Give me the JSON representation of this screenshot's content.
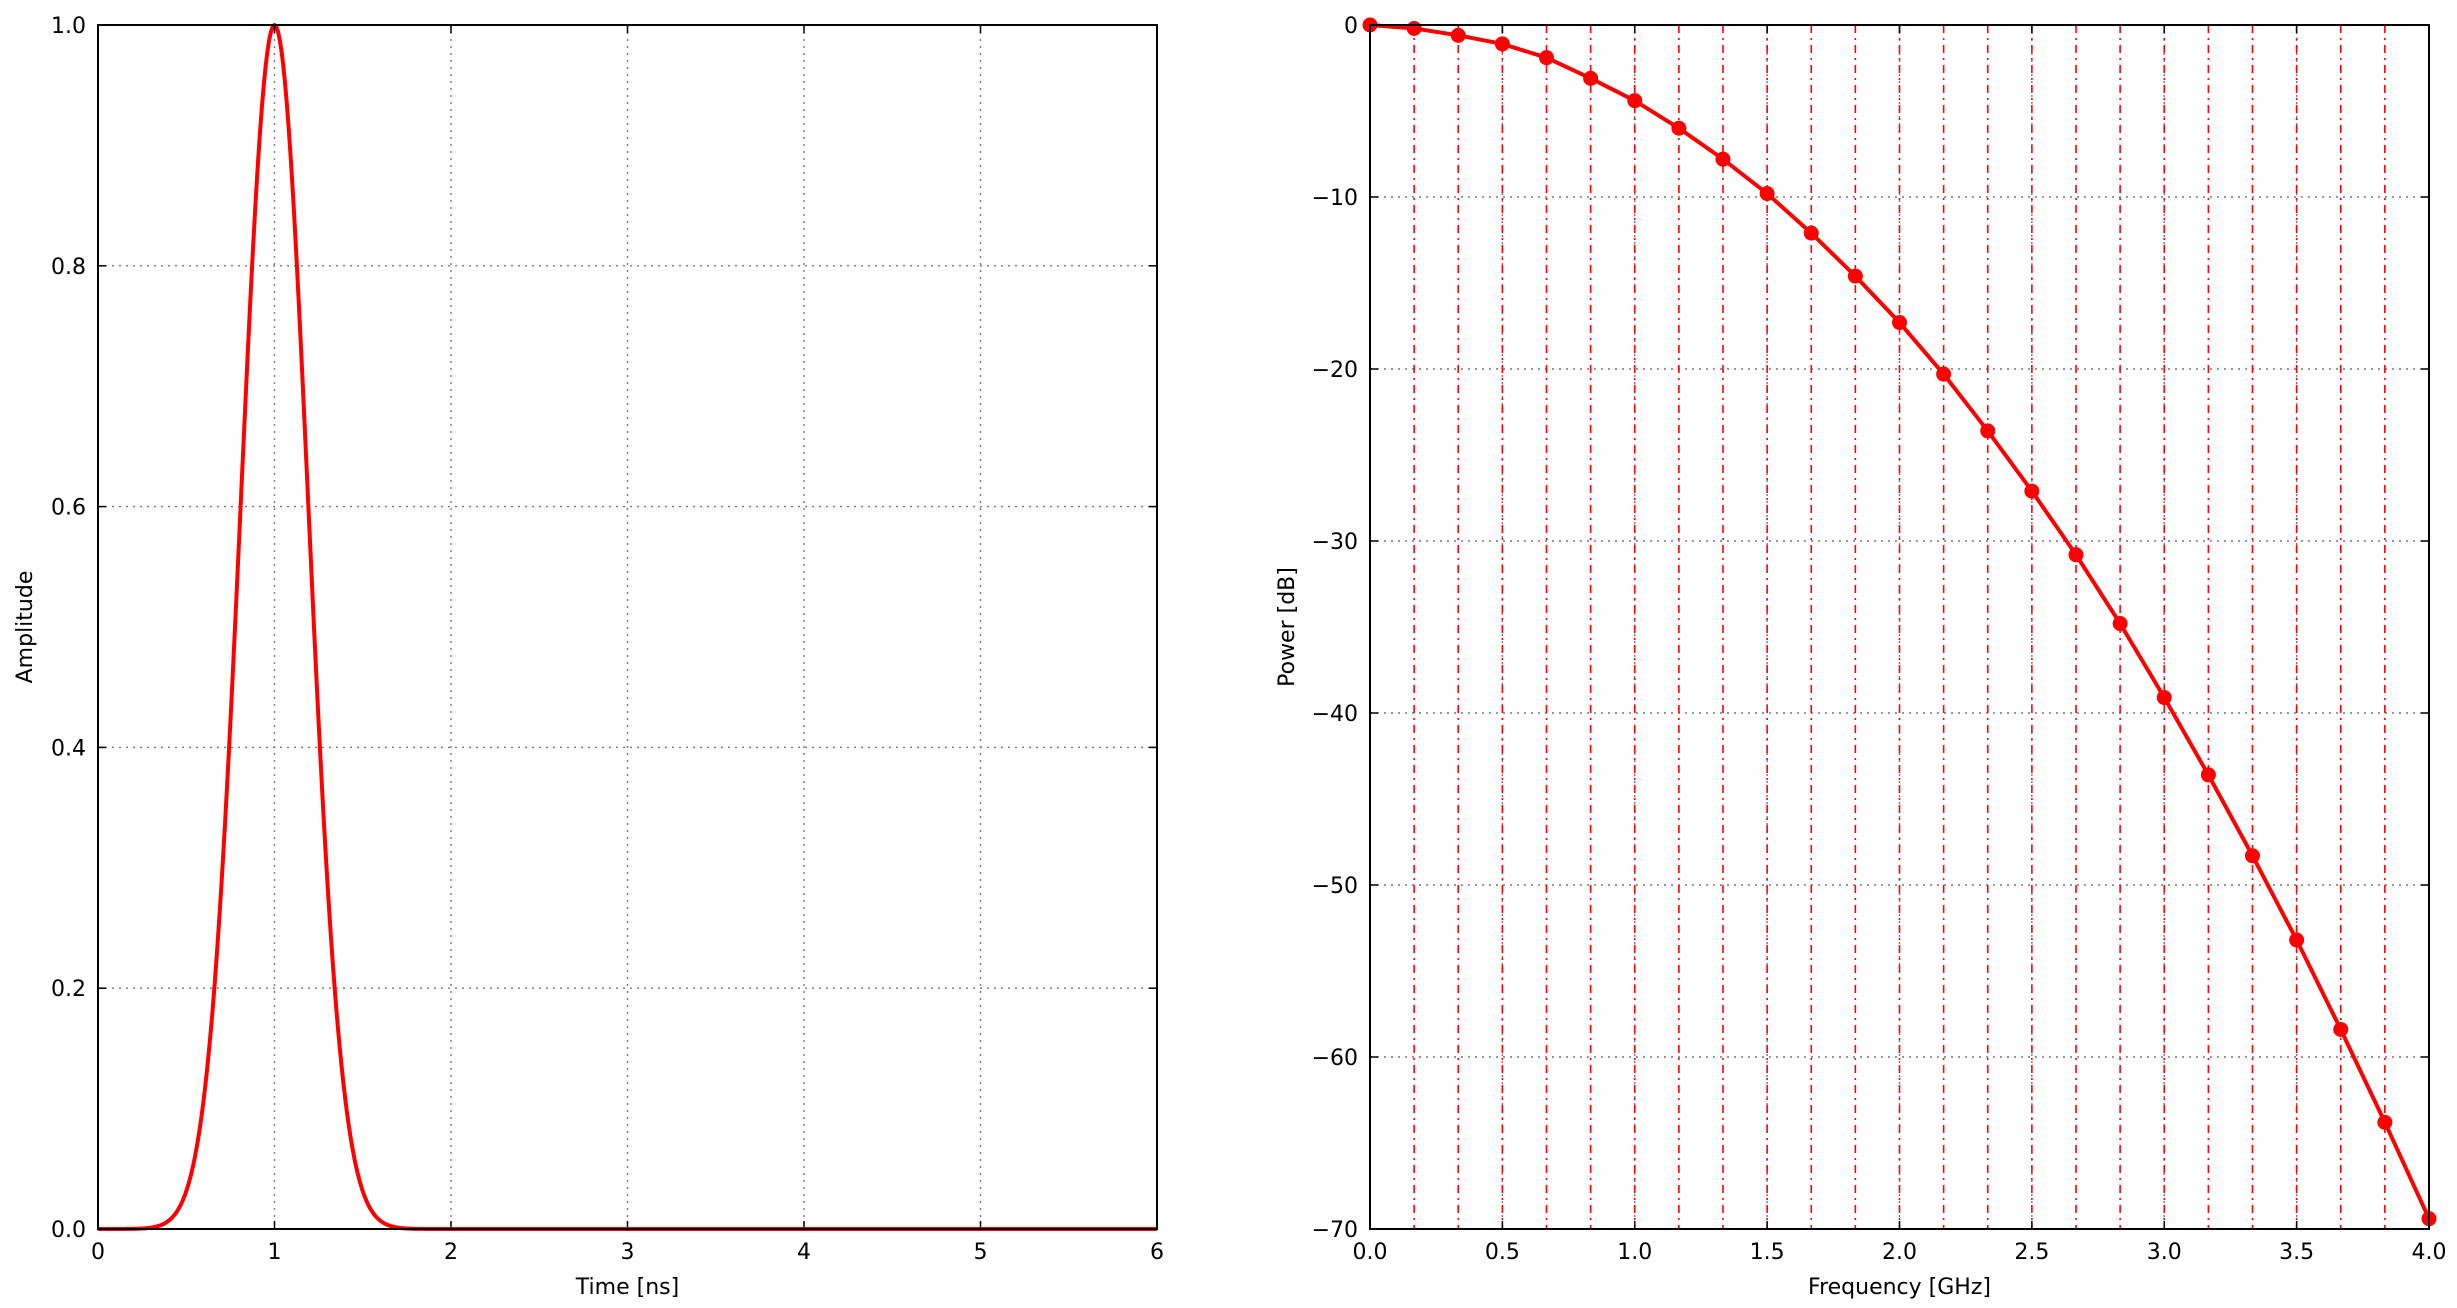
{
  "chart_data": [
    {
      "type": "line",
      "title": "",
      "xlabel": "Time [ns]",
      "ylabel": "Amplitude",
      "xlim": [
        0,
        6
      ],
      "ylim": [
        0,
        1
      ],
      "xticks": [
        "0",
        "1",
        "2",
        "3",
        "4",
        "5",
        "6"
      ],
      "yticks": [
        "0.0",
        "0.2",
        "0.4",
        "0.6",
        "0.8",
        "1.0"
      ],
      "grid": true,
      "series": [
        {
          "color": "#ff0000",
          "curve": "gaussian",
          "peak_time": 1.0,
          "peak_amplitude": 1.0,
          "sigma": 0.19,
          "x": [
            0,
            0.4,
            0.5,
            0.6,
            0.7,
            0.8,
            0.9,
            1.0,
            1.1,
            1.2,
            1.3,
            1.4,
            1.5,
            1.6,
            2,
            3,
            4,
            5,
            6
          ],
          "y": [
            0,
            0.007,
            0.031,
            0.108,
            0.288,
            0.575,
            0.871,
            1.0,
            0.871,
            0.575,
            0.288,
            0.108,
            0.031,
            0.007,
            0,
            0,
            0,
            0,
            0
          ]
        }
      ]
    },
    {
      "type": "line",
      "title": "",
      "xlabel": "Frequency [GHz]",
      "ylabel": "Power [dB]",
      "xlim": [
        0,
        4
      ],
      "ylim": [
        -70,
        0
      ],
      "xticks": [
        "0.0",
        "0.5",
        "1.0",
        "1.5",
        "2.0",
        "2.5",
        "3.0",
        "3.5",
        "4.0"
      ],
      "yticks": [
        "−70",
        "−60",
        "−50",
        "−40",
        "−30",
        "−20",
        "−10",
        "0"
      ],
      "grid": true,
      "series": [
        {
          "color": "#ff0000",
          "markers": true,
          "x": [
            0.0,
            0.1667,
            0.3333,
            0.5,
            0.6667,
            0.8333,
            1.0,
            1.1667,
            1.3333,
            1.5,
            1.6667,
            1.8333,
            2.0,
            2.1667,
            2.3333,
            2.5,
            2.6667,
            2.8333,
            3.0,
            3.1667,
            3.3333,
            3.5,
            3.6667,
            3.8333,
            4.0
          ],
          "y": [
            0,
            -0.2,
            -0.6,
            -1.1,
            -1.9,
            -3.1,
            -4.4,
            -6.0,
            -7.8,
            -9.8,
            -12.1,
            -14.6,
            -17.3,
            -20.3,
            -23.6,
            -27.1,
            -30.8,
            -34.8,
            -39.1,
            -43.6,
            -48.3,
            -53.2,
            -58.4,
            -63.8,
            -69.4
          ]
        }
      ],
      "vlines": {
        "color": "#ff0000",
        "style": "dashdot",
        "x": [
          0.0,
          0.1667,
          0.3333,
          0.5,
          0.6667,
          0.8333,
          1.0,
          1.1667,
          1.3333,
          1.5,
          1.6667,
          1.8333,
          2.0,
          2.1667,
          2.3333,
          2.5,
          2.6667,
          2.8333,
          3.0,
          3.1667,
          3.3333,
          3.5,
          3.6667,
          3.8333,
          4.0
        ]
      }
    }
  ]
}
